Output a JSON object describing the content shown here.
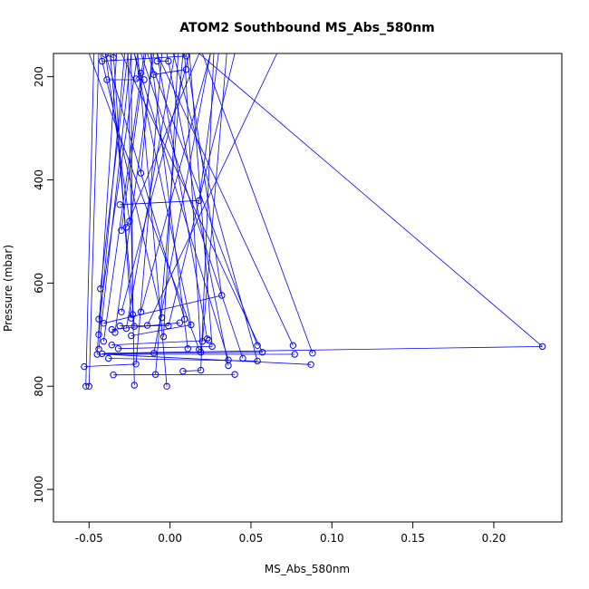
{
  "chart_data": {
    "type": "line",
    "title": "ATOM2 Southbound MS_Abs_580nm",
    "xlabel": "MS_Abs_580nm",
    "ylabel": "Pressure (mbar)",
    "xlim": [
      -0.072,
      0.242
    ],
    "ylim": [
      1063,
      155
    ],
    "y_reversed": true,
    "xticks": [
      -0.05,
      0.0,
      0.05,
      0.1,
      0.15,
      0.2
    ],
    "xtick_labels": [
      "-0.05",
      "0.00",
      "0.05",
      "0.10",
      "0.15",
      "0.20"
    ],
    "yticks": [
      200,
      400,
      600,
      800,
      1000
    ],
    "ytick_labels": [
      "200",
      "400",
      "600",
      "800",
      "1000"
    ],
    "grid": false,
    "legend": "none",
    "series_color": "#0000ff",
    "marker": "open-circle",
    "points": [
      [
        -0.052,
        800
      ],
      [
        -0.022,
        798
      ],
      [
        -0.002,
        800
      ],
      [
        -0.05,
        800
      ],
      [
        -0.035,
        778
      ],
      [
        -0.009,
        777
      ],
      [
        0.008,
        771
      ],
      [
        0.019,
        769
      ],
      [
        0.04,
        777
      ],
      [
        -0.053,
        762
      ],
      [
        -0.021,
        757
      ],
      [
        0.087,
        758
      ],
      [
        0.036,
        760
      ],
      [
        -0.038,
        746
      ],
      [
        0.054,
        751
      ],
      [
        0.045,
        746
      ],
      [
        0.036,
        749
      ],
      [
        0.077,
        738
      ],
      [
        0.088,
        736
      ],
      [
        0.23,
        723
      ],
      [
        0.076,
        721
      ],
      [
        -0.045,
        738
      ],
      [
        -0.042,
        737
      ],
      [
        -0.01,
        736
      ],
      [
        0.019,
        734
      ],
      [
        0.057,
        734
      ],
      [
        -0.032,
        727
      ],
      [
        0.026,
        723
      ],
      [
        0.054,
        721
      ],
      [
        0.011,
        727
      ],
      [
        0.018,
        729
      ],
      [
        -0.044,
        728
      ],
      [
        -0.036,
        720
      ],
      [
        -0.041,
        713
      ],
      [
        -0.024,
        702
      ],
      [
        -0.044,
        700
      ],
      [
        -0.004,
        704
      ],
      [
        0.02,
        713
      ],
      [
        0.024,
        711
      ],
      [
        0.023,
        708
      ],
      [
        -0.034,
        696
      ],
      [
        -0.036,
        690
      ],
      [
        -0.027,
        688
      ],
      [
        -0.031,
        683
      ],
      [
        -0.022,
        684
      ],
      [
        -0.014,
        682
      ],
      [
        -0.001,
        683
      ],
      [
        0.013,
        681
      ],
      [
        0.006,
        677
      ],
      [
        -0.044,
        670
      ],
      [
        -0.024,
        668
      ],
      [
        -0.018,
        656
      ],
      [
        0.009,
        670
      ],
      [
        -0.005,
        667
      ],
      [
        -0.023,
        661
      ],
      [
        -0.03,
        656
      ],
      [
        -0.041,
        678
      ],
      [
        0.032,
        624
      ],
      [
        -0.043,
        611
      ],
      [
        -0.03,
        498
      ],
      [
        -0.027,
        492
      ],
      [
        -0.025,
        480
      ],
      [
        -0.031,
        448
      ],
      [
        0.018,
        440
      ],
      [
        -0.018,
        387
      ],
      [
        -0.021,
        204
      ],
      [
        -0.039,
        206
      ],
      [
        -0.018,
        193
      ],
      [
        -0.016,
        206
      ],
      [
        -0.01,
        196
      ],
      [
        0.01,
        186
      ],
      [
        -0.001,
        170
      ],
      [
        -0.008,
        170
      ],
      [
        -0.042,
        170
      ],
      [
        0.01,
        160
      ],
      [
        -0.04,
        157
      ],
      [
        -0.035,
        163
      ]
    ],
    "lines": [
      [
        [
          -0.052,
          800
        ],
        [
          -0.047,
          155
        ]
      ],
      [
        [
          -0.05,
          800
        ],
        [
          -0.044,
          155
        ]
      ],
      [
        [
          -0.022,
          798
        ],
        [
          -0.026,
          155
        ]
      ],
      [
        [
          -0.002,
          800
        ],
        [
          -0.02,
          155
        ]
      ],
      [
        [
          -0.035,
          778
        ],
        [
          0.04,
          777
        ]
      ],
      [
        [
          -0.009,
          777
        ],
        [
          0.008,
          155
        ]
      ],
      [
        [
          0.008,
          771
        ],
        [
          0.019,
          769
        ]
      ],
      [
        [
          0.019,
          769
        ],
        [
          0.027,
          155
        ]
      ],
      [
        [
          -0.053,
          762
        ],
        [
          -0.021,
          757
        ]
      ],
      [
        [
          -0.021,
          757
        ],
        [
          -0.005,
          155
        ]
      ],
      [
        [
          0.087,
          758
        ],
        [
          -0.04,
          738
        ]
      ],
      [
        [
          0.036,
          760
        ],
        [
          -0.002,
          155
        ]
      ],
      [
        [
          -0.038,
          746
        ],
        [
          0.054,
          751
        ]
      ],
      [
        [
          0.054,
          751
        ],
        [
          0.002,
          155
        ]
      ],
      [
        [
          0.045,
          746
        ],
        [
          -0.018,
          155
        ]
      ],
      [
        [
          0.036,
          749
        ],
        [
          -0.022,
          155
        ]
      ],
      [
        [
          0.077,
          738
        ],
        [
          -0.045,
          738
        ]
      ],
      [
        [
          0.088,
          736
        ],
        [
          0.02,
          155
        ]
      ],
      [
        [
          0.23,
          723
        ],
        [
          -0.04,
          736
        ]
      ],
      [
        [
          0.23,
          723
        ],
        [
          0.018,
          155
        ]
      ],
      [
        [
          0.076,
          721
        ],
        [
          -0.008,
          155
        ]
      ],
      [
        [
          -0.045,
          738
        ],
        [
          -0.033,
          155
        ]
      ],
      [
        [
          -0.042,
          737
        ],
        [
          0.057,
          734
        ]
      ],
      [
        [
          -0.01,
          736
        ],
        [
          0.025,
          155
        ]
      ],
      [
        [
          0.019,
          734
        ],
        [
          0.009,
          155
        ]
      ],
      [
        [
          0.057,
          734
        ],
        [
          -0.03,
          155
        ]
      ],
      [
        [
          -0.032,
          727
        ],
        [
          0.026,
          723
        ]
      ],
      [
        [
          0.026,
          723
        ],
        [
          0.012,
          155
        ]
      ],
      [
        [
          0.054,
          721
        ],
        [
          -0.014,
          155
        ]
      ],
      [
        [
          0.011,
          727
        ],
        [
          -0.012,
          155
        ]
      ],
      [
        [
          0.018,
          729
        ],
        [
          -0.05,
          155
        ]
      ],
      [
        [
          -0.044,
          728
        ],
        [
          -0.024,
          155
        ]
      ],
      [
        [
          -0.036,
          720
        ],
        [
          0.024,
          711
        ]
      ],
      [
        [
          -0.041,
          713
        ],
        [
          -0.016,
          155
        ]
      ],
      [
        [
          -0.024,
          702
        ],
        [
          0.013,
          681
        ]
      ],
      [
        [
          -0.044,
          700
        ],
        [
          -0.028,
          155
        ]
      ],
      [
        [
          -0.004,
          704
        ],
        [
          0.005,
          155
        ]
      ],
      [
        [
          0.02,
          713
        ],
        [
          0.035,
          155
        ]
      ],
      [
        [
          0.023,
          708
        ],
        [
          -0.008,
          155
        ]
      ],
      [
        [
          -0.034,
          696
        ],
        [
          -0.01,
          155
        ]
      ],
      [
        [
          -0.036,
          690
        ],
        [
          0.006,
          677
        ]
      ],
      [
        [
          -0.027,
          688
        ],
        [
          0.003,
          155
        ]
      ],
      [
        [
          -0.031,
          683
        ],
        [
          -0.001,
          683
        ]
      ],
      [
        [
          -0.022,
          684
        ],
        [
          -0.037,
          155
        ]
      ],
      [
        [
          -0.014,
          682
        ],
        [
          0.066,
          155
        ]
      ],
      [
        [
          -0.001,
          683
        ],
        [
          0.04,
          155
        ]
      ],
      [
        [
          0.013,
          681
        ],
        [
          -0.022,
          155
        ]
      ],
      [
        [
          -0.044,
          670
        ],
        [
          -0.02,
          155
        ]
      ],
      [
        [
          -0.024,
          668
        ],
        [
          -0.035,
          155
        ]
      ],
      [
        [
          -0.018,
          656
        ],
        [
          0.025,
          155
        ]
      ],
      [
        [
          0.009,
          670
        ],
        [
          -0.04,
          155
        ]
      ],
      [
        [
          -0.005,
          667
        ],
        [
          -0.043,
          155
        ]
      ],
      [
        [
          -0.023,
          661
        ],
        [
          -0.024,
          155
        ]
      ],
      [
        [
          -0.03,
          656
        ],
        [
          0.012,
          155
        ]
      ],
      [
        [
          -0.041,
          678
        ],
        [
          0.032,
          624
        ]
      ],
      [
        [
          0.032,
          624
        ],
        [
          0.01,
          155
        ]
      ],
      [
        [
          -0.043,
          611
        ],
        [
          -0.026,
          155
        ]
      ],
      [
        [
          -0.03,
          498
        ],
        [
          -0.015,
          155
        ]
      ],
      [
        [
          -0.027,
          492
        ],
        [
          0.018,
          155
        ]
      ],
      [
        [
          -0.025,
          480
        ],
        [
          -0.04,
          155
        ]
      ],
      [
        [
          -0.031,
          448
        ],
        [
          0.018,
          440
        ]
      ],
      [
        [
          0.018,
          440
        ],
        [
          0.03,
          155
        ]
      ],
      [
        [
          -0.018,
          387
        ],
        [
          -0.011,
          155
        ]
      ],
      [
        [
          -0.021,
          204
        ],
        [
          -0.018,
          193
        ]
      ],
      [
        [
          -0.039,
          206
        ],
        [
          -0.016,
          206
        ]
      ],
      [
        [
          -0.01,
          196
        ],
        [
          0.01,
          186
        ]
      ],
      [
        [
          -0.001,
          170
        ],
        [
          -0.008,
          170
        ]
      ],
      [
        [
          -0.042,
          170
        ],
        [
          0.01,
          160
        ]
      ],
      [
        [
          -0.04,
          157
        ],
        [
          -0.035,
          163
        ]
      ]
    ]
  }
}
